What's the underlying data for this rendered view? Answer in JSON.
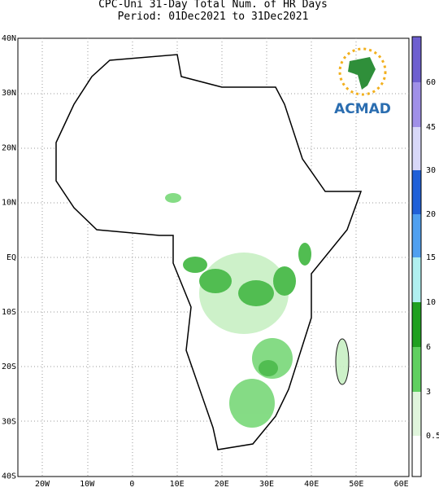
{
  "header": {
    "line1": "CPC-Uni 31-Day Total Num. of HR Days",
    "line2": "Period: 01Dec2021 to 31Dec2021"
  },
  "lat_labels": [
    "40N",
    "30N",
    "20N",
    "10N",
    "EQ",
    "10S",
    "20S",
    "30S",
    "40S"
  ],
  "lon_labels": [
    "20W",
    "10W",
    "0",
    "10E",
    "20E",
    "30E",
    "40E",
    "50E",
    "60E"
  ],
  "colorbar": {
    "labels": [
      0.5,
      3,
      6,
      10,
      15,
      20,
      30,
      45,
      60
    ]
  },
  "logo": {
    "text": "ACMAD"
  }
}
